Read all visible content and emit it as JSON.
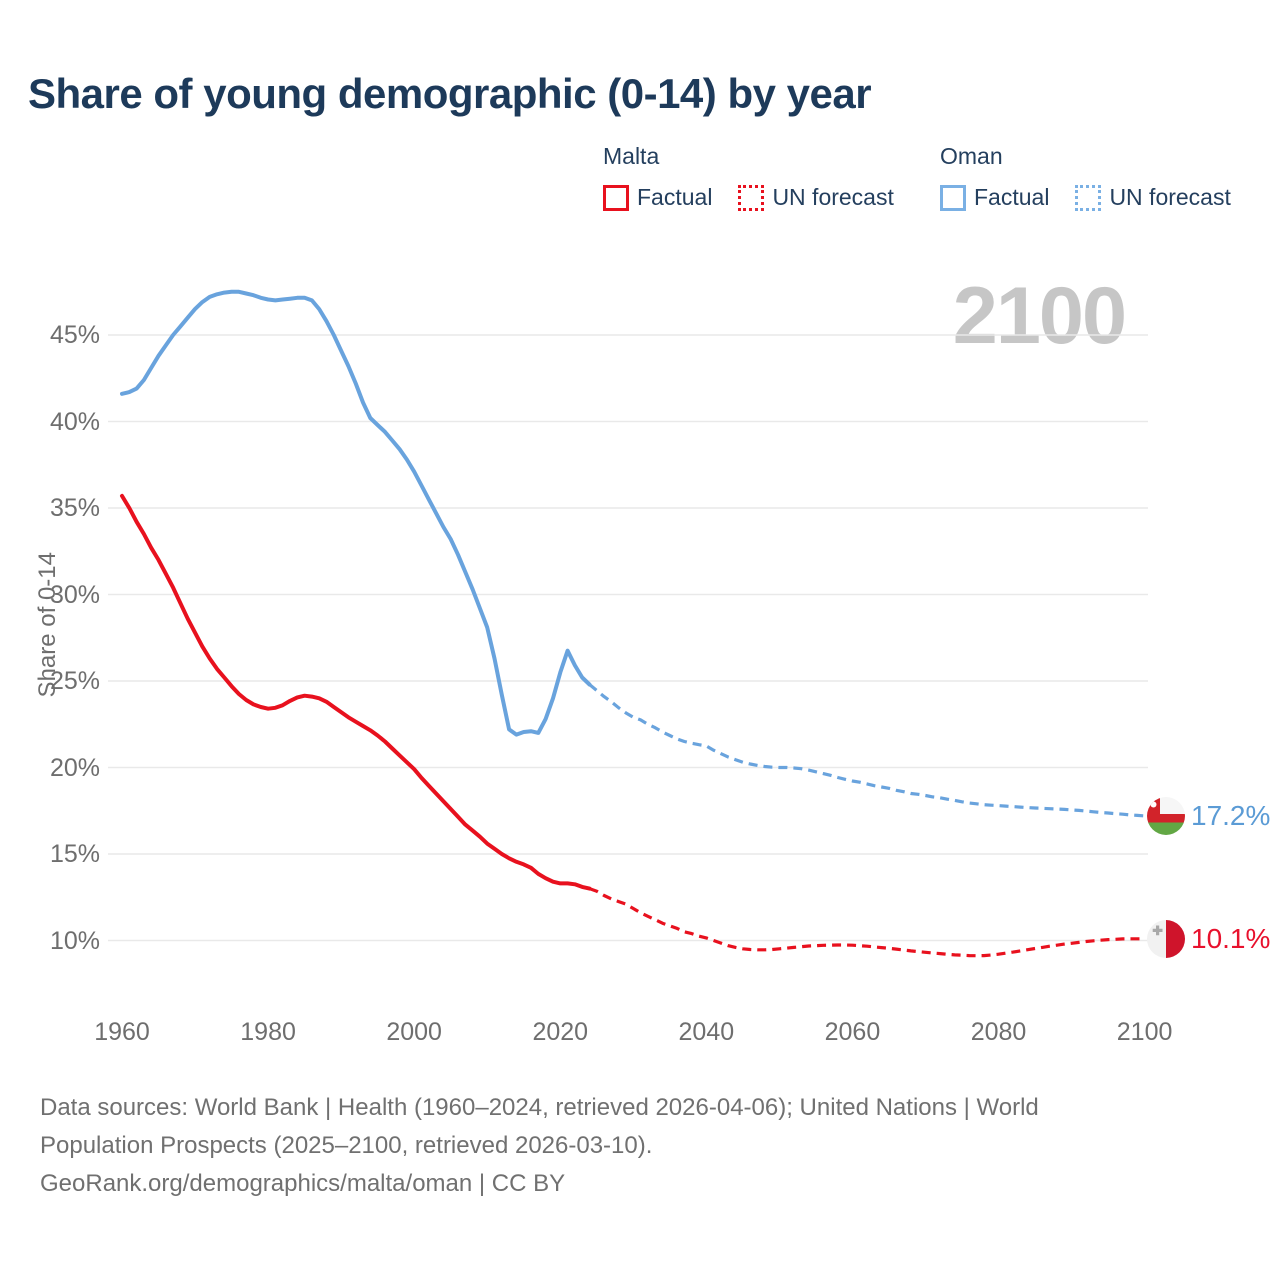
{
  "title": "Share of young demographic (0-14) by year",
  "legend": {
    "malta_header": "Malta",
    "oman_header": "Oman",
    "factual_label": "Factual",
    "forecast_label": "UN forecast"
  },
  "colors": {
    "malta_red": "#e8111e",
    "oman_blue": "#69a3dd",
    "malta_value_red": "#e8112d",
    "oman_value_blue": "#5b9bd5",
    "title_navy": "#1d3a5a",
    "axis_gray": "#6e6e6e",
    "grid_gray": "#e9e9e9",
    "watermark_gray": "#c6c6c6"
  },
  "footer": {
    "line1": "Data sources: World Bank | Health (1960–2024, retrieved 2026-04-06); United Nations | World",
    "line2": "Population Prospects (2025–2100, retrieved 2026-03-10).",
    "line3": "GeoRank.org/demographics/malta/oman | CC BY"
  },
  "chart_data": {
    "type": "line",
    "title": "Share of young demographic (0-14) by year",
    "xlabel": "",
    "ylabel": "Share of 0-14",
    "x_range": [
      1960,
      2100
    ],
    "x_ticks": [
      1960,
      1980,
      2000,
      2020,
      2040,
      2060,
      2080,
      2100
    ],
    "y_ticks_pct": [
      10,
      15,
      20,
      25,
      30,
      35,
      40,
      45
    ],
    "grid": true,
    "legend_position": "top-right",
    "watermark": "2100",
    "end_labels": [
      {
        "country": "Oman",
        "label": "17.2%"
      },
      {
        "country": "Malta",
        "label": "10.1%"
      }
    ],
    "series": [
      {
        "name": "Oman factual",
        "color": "#69a3dd",
        "dash": "solid",
        "points": [
          [
            1960,
            41.6
          ],
          [
            1961,
            41.7
          ],
          [
            1962,
            41.9
          ],
          [
            1963,
            42.4
          ],
          [
            1964,
            43.1
          ],
          [
            1965,
            43.8
          ],
          [
            1966,
            44.4
          ],
          [
            1967,
            45.0
          ],
          [
            1968,
            45.5
          ],
          [
            1969,
            46.0
          ],
          [
            1970,
            46.5
          ],
          [
            1971,
            46.9
          ],
          [
            1972,
            47.2
          ],
          [
            1973,
            47.35
          ],
          [
            1974,
            47.45
          ],
          [
            1975,
            47.5
          ],
          [
            1976,
            47.5
          ],
          [
            1977,
            47.4
          ],
          [
            1978,
            47.3
          ],
          [
            1979,
            47.15
          ],
          [
            1980,
            47.05
          ],
          [
            1981,
            47.0
          ],
          [
            1982,
            47.05
          ],
          [
            1983,
            47.1
          ],
          [
            1984,
            47.15
          ],
          [
            1985,
            47.15
          ],
          [
            1986,
            47.0
          ],
          [
            1987,
            46.5
          ],
          [
            1988,
            45.8
          ],
          [
            1989,
            45.0
          ],
          [
            1990,
            44.1
          ],
          [
            1991,
            43.2
          ],
          [
            1992,
            42.2
          ],
          [
            1993,
            41.1
          ],
          [
            1994,
            40.2
          ],
          [
            1995,
            39.8
          ],
          [
            1996,
            39.4
          ],
          [
            1997,
            38.9
          ],
          [
            1998,
            38.4
          ],
          [
            1999,
            37.8
          ],
          [
            2000,
            37.1
          ],
          [
            2001,
            36.3
          ],
          [
            2002,
            35.5
          ],
          [
            2003,
            34.7
          ],
          [
            2004,
            33.9
          ],
          [
            2005,
            33.2
          ],
          [
            2006,
            32.3
          ],
          [
            2007,
            31.3
          ],
          [
            2008,
            30.3
          ],
          [
            2009,
            29.2
          ],
          [
            2010,
            28.1
          ],
          [
            2011,
            26.3
          ],
          [
            2012,
            24.2
          ],
          [
            2013,
            22.2
          ],
          [
            2014,
            21.9
          ],
          [
            2015,
            22.05
          ],
          [
            2016,
            22.1
          ],
          [
            2017,
            22.0
          ],
          [
            2018,
            22.8
          ],
          [
            2019,
            24.0
          ],
          [
            2020,
            25.5
          ],
          [
            2021,
            26.75
          ],
          [
            2022,
            25.9
          ],
          [
            2023,
            25.2
          ],
          [
            2024,
            24.8
          ]
        ]
      },
      {
        "name": "Oman UN forecast",
        "color": "#69a3dd",
        "dash": "dashed",
        "points": [
          [
            2024,
            24.8
          ],
          [
            2025,
            24.45
          ],
          [
            2026,
            24.1
          ],
          [
            2027,
            23.8
          ],
          [
            2028,
            23.45
          ],
          [
            2029,
            23.15
          ],
          [
            2030,
            22.9
          ],
          [
            2031,
            22.75
          ],
          [
            2032,
            22.5
          ],
          [
            2033,
            22.3
          ],
          [
            2034,
            22.05
          ],
          [
            2035,
            21.85
          ],
          [
            2036,
            21.65
          ],
          [
            2037,
            21.5
          ],
          [
            2038,
            21.4
          ],
          [
            2039,
            21.32
          ],
          [
            2040,
            21.25
          ],
          [
            2041,
            21.0
          ],
          [
            2042,
            20.8
          ],
          [
            2043,
            20.6
          ],
          [
            2044,
            20.45
          ],
          [
            2045,
            20.3
          ],
          [
            2046,
            20.2
          ],
          [
            2047,
            20.12
          ],
          [
            2048,
            20.06
          ],
          [
            2049,
            20.02
          ],
          [
            2050,
            20.0
          ],
          [
            2051,
            20.0
          ],
          [
            2052,
            19.97
          ],
          [
            2053,
            19.93
          ],
          [
            2054,
            19.85
          ],
          [
            2055,
            19.75
          ],
          [
            2056,
            19.65
          ],
          [
            2057,
            19.55
          ],
          [
            2058,
            19.42
          ],
          [
            2059,
            19.32
          ],
          [
            2060,
            19.22
          ],
          [
            2061,
            19.15
          ],
          [
            2062,
            19.05
          ],
          [
            2063,
            18.95
          ],
          [
            2064,
            18.87
          ],
          [
            2065,
            18.8
          ],
          [
            2066,
            18.68
          ],
          [
            2067,
            18.6
          ],
          [
            2068,
            18.5
          ],
          [
            2069,
            18.45
          ],
          [
            2070,
            18.38
          ],
          [
            2071,
            18.3
          ],
          [
            2072,
            18.25
          ],
          [
            2073,
            18.17
          ],
          [
            2074,
            18.1
          ],
          [
            2075,
            18.02
          ],
          [
            2076,
            17.95
          ],
          [
            2077,
            17.9
          ],
          [
            2078,
            17.85
          ],
          [
            2079,
            17.82
          ],
          [
            2080,
            17.8
          ],
          [
            2081,
            17.77
          ],
          [
            2082,
            17.74
          ],
          [
            2083,
            17.71
          ],
          [
            2084,
            17.68
          ],
          [
            2085,
            17.66
          ],
          [
            2086,
            17.64
          ],
          [
            2087,
            17.62
          ],
          [
            2088,
            17.6
          ],
          [
            2089,
            17.58
          ],
          [
            2090,
            17.55
          ],
          [
            2091,
            17.52
          ],
          [
            2092,
            17.48
          ],
          [
            2093,
            17.44
          ],
          [
            2094,
            17.4
          ],
          [
            2095,
            17.37
          ],
          [
            2096,
            17.33
          ],
          [
            2097,
            17.3
          ],
          [
            2098,
            17.26
          ],
          [
            2099,
            17.23
          ],
          [
            2100,
            17.2
          ]
        ]
      },
      {
        "name": "Malta factual",
        "color": "#e8111e",
        "dash": "solid",
        "points": [
          [
            1960,
            35.7
          ],
          [
            1961,
            35.0
          ],
          [
            1962,
            34.2
          ],
          [
            1963,
            33.5
          ],
          [
            1964,
            32.7
          ],
          [
            1965,
            32.0
          ],
          [
            1966,
            31.2
          ],
          [
            1967,
            30.4
          ],
          [
            1968,
            29.5
          ],
          [
            1969,
            28.6
          ],
          [
            1970,
            27.8
          ],
          [
            1971,
            27.0
          ],
          [
            1972,
            26.3
          ],
          [
            1973,
            25.7
          ],
          [
            1974,
            25.2
          ],
          [
            1975,
            24.7
          ],
          [
            1976,
            24.25
          ],
          [
            1977,
            23.9
          ],
          [
            1978,
            23.65
          ],
          [
            1979,
            23.5
          ],
          [
            1980,
            23.4
          ],
          [
            1981,
            23.45
          ],
          [
            1982,
            23.6
          ],
          [
            1983,
            23.85
          ],
          [
            1984,
            24.05
          ],
          [
            1985,
            24.15
          ],
          [
            1986,
            24.1
          ],
          [
            1987,
            24.0
          ],
          [
            1988,
            23.8
          ],
          [
            1989,
            23.5
          ],
          [
            1990,
            23.2
          ],
          [
            1991,
            22.9
          ],
          [
            1992,
            22.65
          ],
          [
            1993,
            22.4
          ],
          [
            1994,
            22.15
          ],
          [
            1995,
            21.85
          ],
          [
            1996,
            21.5
          ],
          [
            1997,
            21.1
          ],
          [
            1998,
            20.7
          ],
          [
            1999,
            20.3
          ],
          [
            2000,
            19.9
          ],
          [
            2001,
            19.4
          ],
          [
            2002,
            18.95
          ],
          [
            2003,
            18.5
          ],
          [
            2004,
            18.05
          ],
          [
            2005,
            17.6
          ],
          [
            2006,
            17.15
          ],
          [
            2007,
            16.7
          ],
          [
            2008,
            16.35
          ],
          [
            2009,
            16.0
          ],
          [
            2010,
            15.6
          ],
          [
            2011,
            15.3
          ],
          [
            2012,
            15.0
          ],
          [
            2013,
            14.75
          ],
          [
            2014,
            14.55
          ],
          [
            2015,
            14.4
          ],
          [
            2016,
            14.2
          ],
          [
            2017,
            13.85
          ],
          [
            2018,
            13.6
          ],
          [
            2019,
            13.4
          ],
          [
            2020,
            13.3
          ],
          [
            2021,
            13.3
          ],
          [
            2022,
            13.25
          ],
          [
            2023,
            13.1
          ],
          [
            2024,
            13.0
          ]
        ]
      },
      {
        "name": "Malta UN forecast",
        "color": "#e8111e",
        "dash": "dashed",
        "points": [
          [
            2024,
            13.0
          ],
          [
            2025,
            12.85
          ],
          [
            2026,
            12.6
          ],
          [
            2027,
            12.4
          ],
          [
            2028,
            12.25
          ],
          [
            2029,
            12.1
          ],
          [
            2030,
            11.85
          ],
          [
            2031,
            11.6
          ],
          [
            2032,
            11.4
          ],
          [
            2033,
            11.2
          ],
          [
            2034,
            11.0
          ],
          [
            2035,
            10.85
          ],
          [
            2036,
            10.7
          ],
          [
            2037,
            10.5
          ],
          [
            2038,
            10.4
          ],
          [
            2039,
            10.25
          ],
          [
            2040,
            10.15
          ],
          [
            2041,
            10.0
          ],
          [
            2042,
            9.85
          ],
          [
            2043,
            9.7
          ],
          [
            2044,
            9.6
          ],
          [
            2045,
            9.52
          ],
          [
            2046,
            9.48
          ],
          [
            2047,
            9.46
          ],
          [
            2048,
            9.46
          ],
          [
            2049,
            9.48
          ],
          [
            2050,
            9.52
          ],
          [
            2051,
            9.56
          ],
          [
            2052,
            9.6
          ],
          [
            2053,
            9.64
          ],
          [
            2054,
            9.68
          ],
          [
            2055,
            9.7
          ],
          [
            2056,
            9.72
          ],
          [
            2057,
            9.73
          ],
          [
            2058,
            9.74
          ],
          [
            2059,
            9.74
          ],
          [
            2060,
            9.73
          ],
          [
            2061,
            9.7
          ],
          [
            2062,
            9.67
          ],
          [
            2063,
            9.63
          ],
          [
            2064,
            9.59
          ],
          [
            2065,
            9.55
          ],
          [
            2066,
            9.5
          ],
          [
            2067,
            9.45
          ],
          [
            2068,
            9.4
          ],
          [
            2069,
            9.36
          ],
          [
            2070,
            9.32
          ],
          [
            2071,
            9.28
          ],
          [
            2072,
            9.24
          ],
          [
            2073,
            9.2
          ],
          [
            2074,
            9.17
          ],
          [
            2075,
            9.15
          ],
          [
            2076,
            9.13
          ],
          [
            2077,
            9.12
          ],
          [
            2078,
            9.13
          ],
          [
            2079,
            9.16
          ],
          [
            2080,
            9.21
          ],
          [
            2081,
            9.27
          ],
          [
            2082,
            9.33
          ],
          [
            2083,
            9.4
          ],
          [
            2084,
            9.47
          ],
          [
            2085,
            9.54
          ],
          [
            2086,
            9.6
          ],
          [
            2087,
            9.67
          ],
          [
            2088,
            9.73
          ],
          [
            2089,
            9.79
          ],
          [
            2090,
            9.84
          ],
          [
            2091,
            9.89
          ],
          [
            2092,
            9.94
          ],
          [
            2093,
            9.98
          ],
          [
            2094,
            10.02
          ],
          [
            2095,
            10.05
          ],
          [
            2096,
            10.07
          ],
          [
            2097,
            10.09
          ],
          [
            2098,
            10.1
          ],
          [
            2099,
            10.1
          ],
          [
            2100,
            10.1
          ]
        ]
      }
    ]
  }
}
